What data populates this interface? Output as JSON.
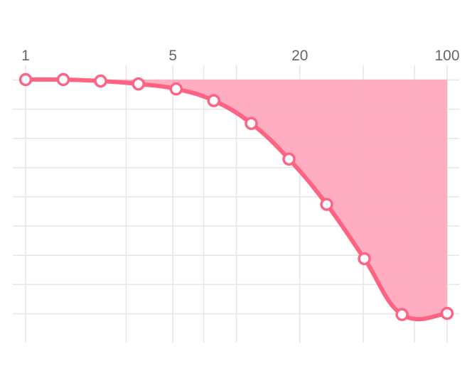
{
  "chart_data": {
    "type": "area",
    "title": "",
    "xlabel": "",
    "ylabel": "",
    "x_scale": "log",
    "x_axis_position": "top",
    "xlim": [
      1,
      100
    ],
    "ylim": [
      -9,
      0
    ],
    "x_tick_labels": [
      {
        "value": 1,
        "label": "1"
      },
      {
        "value": 5,
        "label": "5"
      },
      {
        "value": 20,
        "label": "20"
      },
      {
        "value": 100,
        "label": "100"
      }
    ],
    "x_gridlines": [
      1,
      3,
      5,
      7,
      10,
      20,
      40,
      70,
      100
    ],
    "y_gridlines": [
      0,
      -1,
      -2,
      -3,
      -4,
      -5,
      -6,
      -7,
      -8
    ],
    "grid": true,
    "legend": "none",
    "series": [
      {
        "x": [
          1,
          1.51,
          2.27,
          3.43,
          5.18,
          7.81,
          11.77,
          17.77,
          26.83,
          40.5,
          61.1,
          100
        ],
        "y": [
          0.0,
          0.0,
          -0.05,
          -0.15,
          -0.32,
          -0.72,
          -1.5,
          -2.72,
          -4.27,
          -6.13,
          -8.04,
          -8.04
        ],
        "color": "#ff6384",
        "fill": "rgba(255,99,132,0.55)"
      }
    ],
    "colors": {
      "line": "#ff6384",
      "fill": "#ffaabf",
      "grid": "#e6e6e6",
      "tick": "#666666"
    }
  }
}
